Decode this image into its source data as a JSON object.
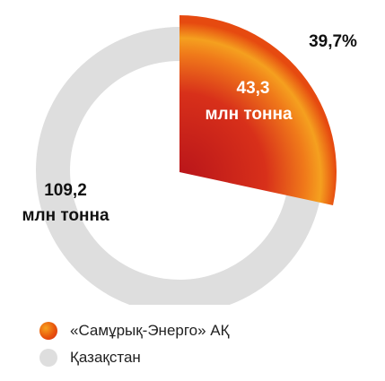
{
  "chart_data": {
    "type": "pie",
    "style": "donut-with-exploded-segment",
    "unit": "млн тонна",
    "categories": [
      "«Самұрық-Энерго» АҚ",
      "Қазақстан"
    ],
    "values": [
      43.3,
      109.2
    ],
    "value_labels": [
      "43,3",
      "109,2"
    ],
    "percent_label": "39,7%",
    "legend": {
      "position": "bottom-left"
    },
    "colors": {
      "segment_outer": "#e8550c",
      "segment_mid": "#d6301a",
      "segment_center": "#f5a623",
      "ring": "#dedede",
      "highlight_text": "#ffffff",
      "text": "#111111"
    }
  },
  "legend": {
    "items": [
      {
        "label": "«Самұрық-Энерго» АҚ",
        "swatch": "orange-gradient"
      },
      {
        "label": "Қазақстан",
        "swatch": "#dedede"
      }
    ]
  }
}
